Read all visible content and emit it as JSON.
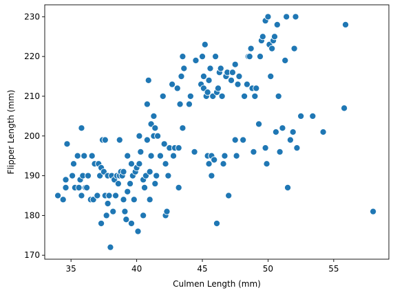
{
  "chart_data": {
    "type": "scatter",
    "title": "",
    "xlabel": "Culmen Length (mm)",
    "ylabel": "Flipper Length (mm)",
    "xlim": [
      33.0,
      59.2
    ],
    "ylim": [
      169.0,
      233.0
    ],
    "xticks": [
      35,
      40,
      45,
      50,
      55
    ],
    "yticks": [
      170,
      180,
      190,
      200,
      210,
      220,
      230
    ],
    "grid": false,
    "legend": "none",
    "marker_color": "#1f77b4",
    "marker_edge": "#ffffff",
    "points": [
      [
        34.0,
        185
      ],
      [
        34.4,
        184
      ],
      [
        34.6,
        187
      ],
      [
        34.6,
        189
      ],
      [
        34.7,
        198
      ],
      [
        35.1,
        190
      ],
      [
        35.2,
        193
      ],
      [
        35.3,
        187
      ],
      [
        35.5,
        195
      ],
      [
        35.6,
        187
      ],
      [
        35.7,
        189
      ],
      [
        35.8,
        202
      ],
      [
        35.8,
        185
      ],
      [
        35.9,
        190
      ],
      [
        36.0,
        195
      ],
      [
        36.1,
        187
      ],
      [
        36.2,
        187
      ],
      [
        36.3,
        190
      ],
      [
        36.5,
        184
      ],
      [
        36.6,
        195
      ],
      [
        36.7,
        184
      ],
      [
        36.8,
        193
      ],
      [
        37.0,
        185
      ],
      [
        37.1,
        193
      ],
      [
        37.2,
        190
      ],
      [
        37.3,
        178
      ],
      [
        37.3,
        192
      ],
      [
        37.4,
        199
      ],
      [
        37.5,
        191
      ],
      [
        37.6,
        185
      ],
      [
        37.6,
        199
      ],
      [
        37.7,
        180
      ],
      [
        37.8,
        183
      ],
      [
        37.8,
        190
      ],
      [
        37.9,
        185
      ],
      [
        38.0,
        172
      ],
      [
        38.1,
        190
      ],
      [
        38.2,
        181
      ],
      [
        38.3,
        189
      ],
      [
        38.4,
        185
      ],
      [
        38.5,
        190
      ],
      [
        38.6,
        188
      ],
      [
        38.7,
        190
      ],
      [
        38.7,
        199
      ],
      [
        38.8,
        191
      ],
      [
        38.9,
        190
      ],
      [
        39.0,
        184
      ],
      [
        39.0,
        191
      ],
      [
        39.1,
        181
      ],
      [
        39.2,
        179
      ],
      [
        39.3,
        195
      ],
      [
        39.3,
        186
      ],
      [
        39.5,
        188
      ],
      [
        39.6,
        193
      ],
      [
        39.6,
        178
      ],
      [
        39.7,
        190
      ],
      [
        39.8,
        184
      ],
      [
        39.9,
        191
      ],
      [
        40.0,
        192
      ],
      [
        40.1,
        176
      ],
      [
        40.2,
        200
      ],
      [
        40.2,
        193
      ],
      [
        40.3,
        196
      ],
      [
        40.5,
        180
      ],
      [
        40.5,
        189
      ],
      [
        40.6,
        187
      ],
      [
        40.7,
        190
      ],
      [
        40.8,
        199
      ],
      [
        40.8,
        208
      ],
      [
        40.9,
        214
      ],
      [
        41.0,
        191
      ],
      [
        41.0,
        184
      ],
      [
        41.1,
        195
      ],
      [
        41.1,
        203
      ],
      [
        41.3,
        205
      ],
      [
        41.3,
        200
      ],
      [
        41.4,
        202
      ],
      [
        41.4,
        188
      ],
      [
        41.5,
        190
      ],
      [
        41.6,
        200
      ],
      [
        41.8,
        195
      ],
      [
        42.0,
        210
      ],
      [
        42.1,
        198
      ],
      [
        42.2,
        180
      ],
      [
        42.2,
        193
      ],
      [
        42.3,
        181
      ],
      [
        42.4,
        190
      ],
      [
        42.5,
        197
      ],
      [
        42.7,
        213
      ],
      [
        42.8,
        195
      ],
      [
        42.9,
        197
      ],
      [
        43.1,
        212
      ],
      [
        43.2,
        187
      ],
      [
        43.2,
        197
      ],
      [
        43.3,
        208
      ],
      [
        43.4,
        215
      ],
      [
        43.5,
        220
      ],
      [
        43.5,
        202
      ],
      [
        43.6,
        217
      ],
      [
        44.0,
        208
      ],
      [
        44.1,
        210
      ],
      [
        44.4,
        196
      ],
      [
        44.5,
        219
      ],
      [
        44.9,
        213
      ],
      [
        45.0,
        220
      ],
      [
        45.1,
        215
      ],
      [
        45.1,
        212
      ],
      [
        45.2,
        223
      ],
      [
        45.3,
        210
      ],
      [
        45.4,
        195
      ],
      [
        45.4,
        211
      ],
      [
        45.5,
        214
      ],
      [
        45.5,
        193
      ],
      [
        45.6,
        217
      ],
      [
        45.7,
        190
      ],
      [
        45.7,
        195
      ],
      [
        45.8,
        210
      ],
      [
        45.9,
        194
      ],
      [
        46.0,
        220
      ],
      [
        46.1,
        211
      ],
      [
        46.1,
        178
      ],
      [
        46.2,
        212
      ],
      [
        46.3,
        216
      ],
      [
        46.4,
        217
      ],
      [
        46.5,
        210
      ],
      [
        46.6,
        193
      ],
      [
        46.7,
        195
      ],
      [
        46.8,
        215
      ],
      [
        46.9,
        216
      ],
      [
        47.0,
        185
      ],
      [
        47.2,
        214
      ],
      [
        47.3,
        216
      ],
      [
        47.5,
        218
      ],
      [
        47.5,
        199
      ],
      [
        47.6,
        195
      ],
      [
        47.7,
        213
      ],
      [
        47.8,
        215
      ],
      [
        48.1,
        199
      ],
      [
        48.2,
        210
      ],
      [
        48.4,
        213
      ],
      [
        48.5,
        220
      ],
      [
        48.6,
        220
      ],
      [
        48.7,
        222
      ],
      [
        48.8,
        212
      ],
      [
        48.9,
        196
      ],
      [
        49.0,
        210
      ],
      [
        49.1,
        212
      ],
      [
        49.3,
        203
      ],
      [
        49.4,
        220
      ],
      [
        49.5,
        224
      ],
      [
        49.6,
        225
      ],
      [
        49.8,
        229
      ],
      [
        49.8,
        197
      ],
      [
        49.9,
        193
      ],
      [
        50.0,
        230
      ],
      [
        50.1,
        223
      ],
      [
        50.2,
        215
      ],
      [
        50.3,
        222
      ],
      [
        50.4,
        224
      ],
      [
        50.5,
        225
      ],
      [
        50.6,
        201
      ],
      [
        50.7,
        228
      ],
      [
        50.8,
        210
      ],
      [
        50.9,
        196
      ],
      [
        51.1,
        202
      ],
      [
        51.3,
        219
      ],
      [
        51.4,
        230
      ],
      [
        51.5,
        187
      ],
      [
        51.7,
        199
      ],
      [
        51.9,
        201
      ],
      [
        52.0,
        222
      ],
      [
        52.1,
        230
      ],
      [
        52.2,
        197
      ],
      [
        52.5,
        205
      ],
      [
        53.4,
        205
      ],
      [
        54.2,
        201
      ],
      [
        55.8,
        207
      ],
      [
        55.9,
        228
      ],
      [
        58.0,
        181
      ]
    ]
  }
}
